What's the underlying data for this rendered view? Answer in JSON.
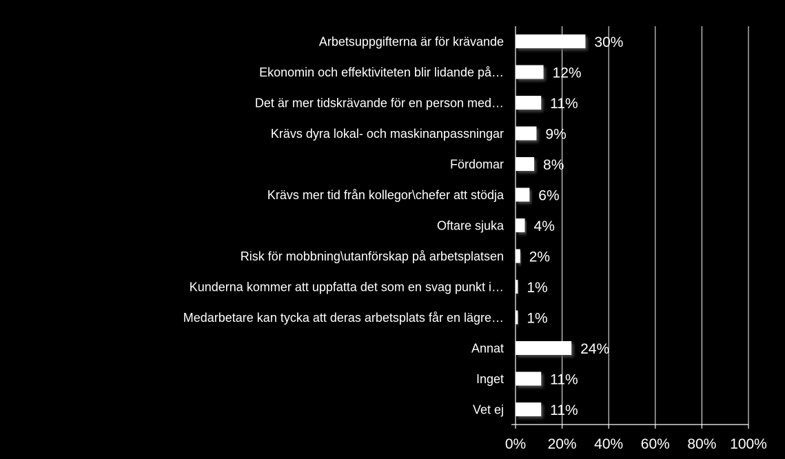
{
  "chart_data": {
    "type": "bar",
    "orientation": "horizontal",
    "categories": [
      "Arbetsuppgifterna är för krävande",
      "Ekonomin och effektiviteten blir lidande på…",
      "Det är mer tidskrävande för en person med…",
      "Krävs dyra lokal- och maskinanpassningar",
      "Fördomar",
      "Krävs mer tid från kollegor\\chefer att stödja",
      "Oftare sjuka",
      "Risk för mobbning\\utanförskap på arbetsplatsen",
      "Kunderna kommer att uppfatta det som en svag punkt i…",
      "Medarbetare kan tycka att deras arbetsplats får en lägre…",
      "Annat",
      "Inget",
      "Vet ej"
    ],
    "values": [
      30,
      12,
      11,
      9,
      8,
      6,
      4,
      2,
      1,
      1,
      24,
      11,
      11
    ],
    "value_labels": [
      "30%",
      "12%",
      "11%",
      "9%",
      "8%",
      "6%",
      "4%",
      "2%",
      "1%",
      "1%",
      "24%",
      "11%",
      "11%"
    ],
    "x_ticks": [
      0,
      20,
      40,
      60,
      80,
      100
    ],
    "x_tick_labels": [
      "0%",
      "20%",
      "40%",
      "60%",
      "80%",
      "100%"
    ],
    "xlim": [
      0,
      100
    ],
    "grid": true,
    "title": "",
    "xlabel": "",
    "ylabel": "",
    "colors": {
      "background": "#000000",
      "bar": "#ffffff",
      "text": "#ffffff",
      "grid": "#ffffff"
    }
  }
}
